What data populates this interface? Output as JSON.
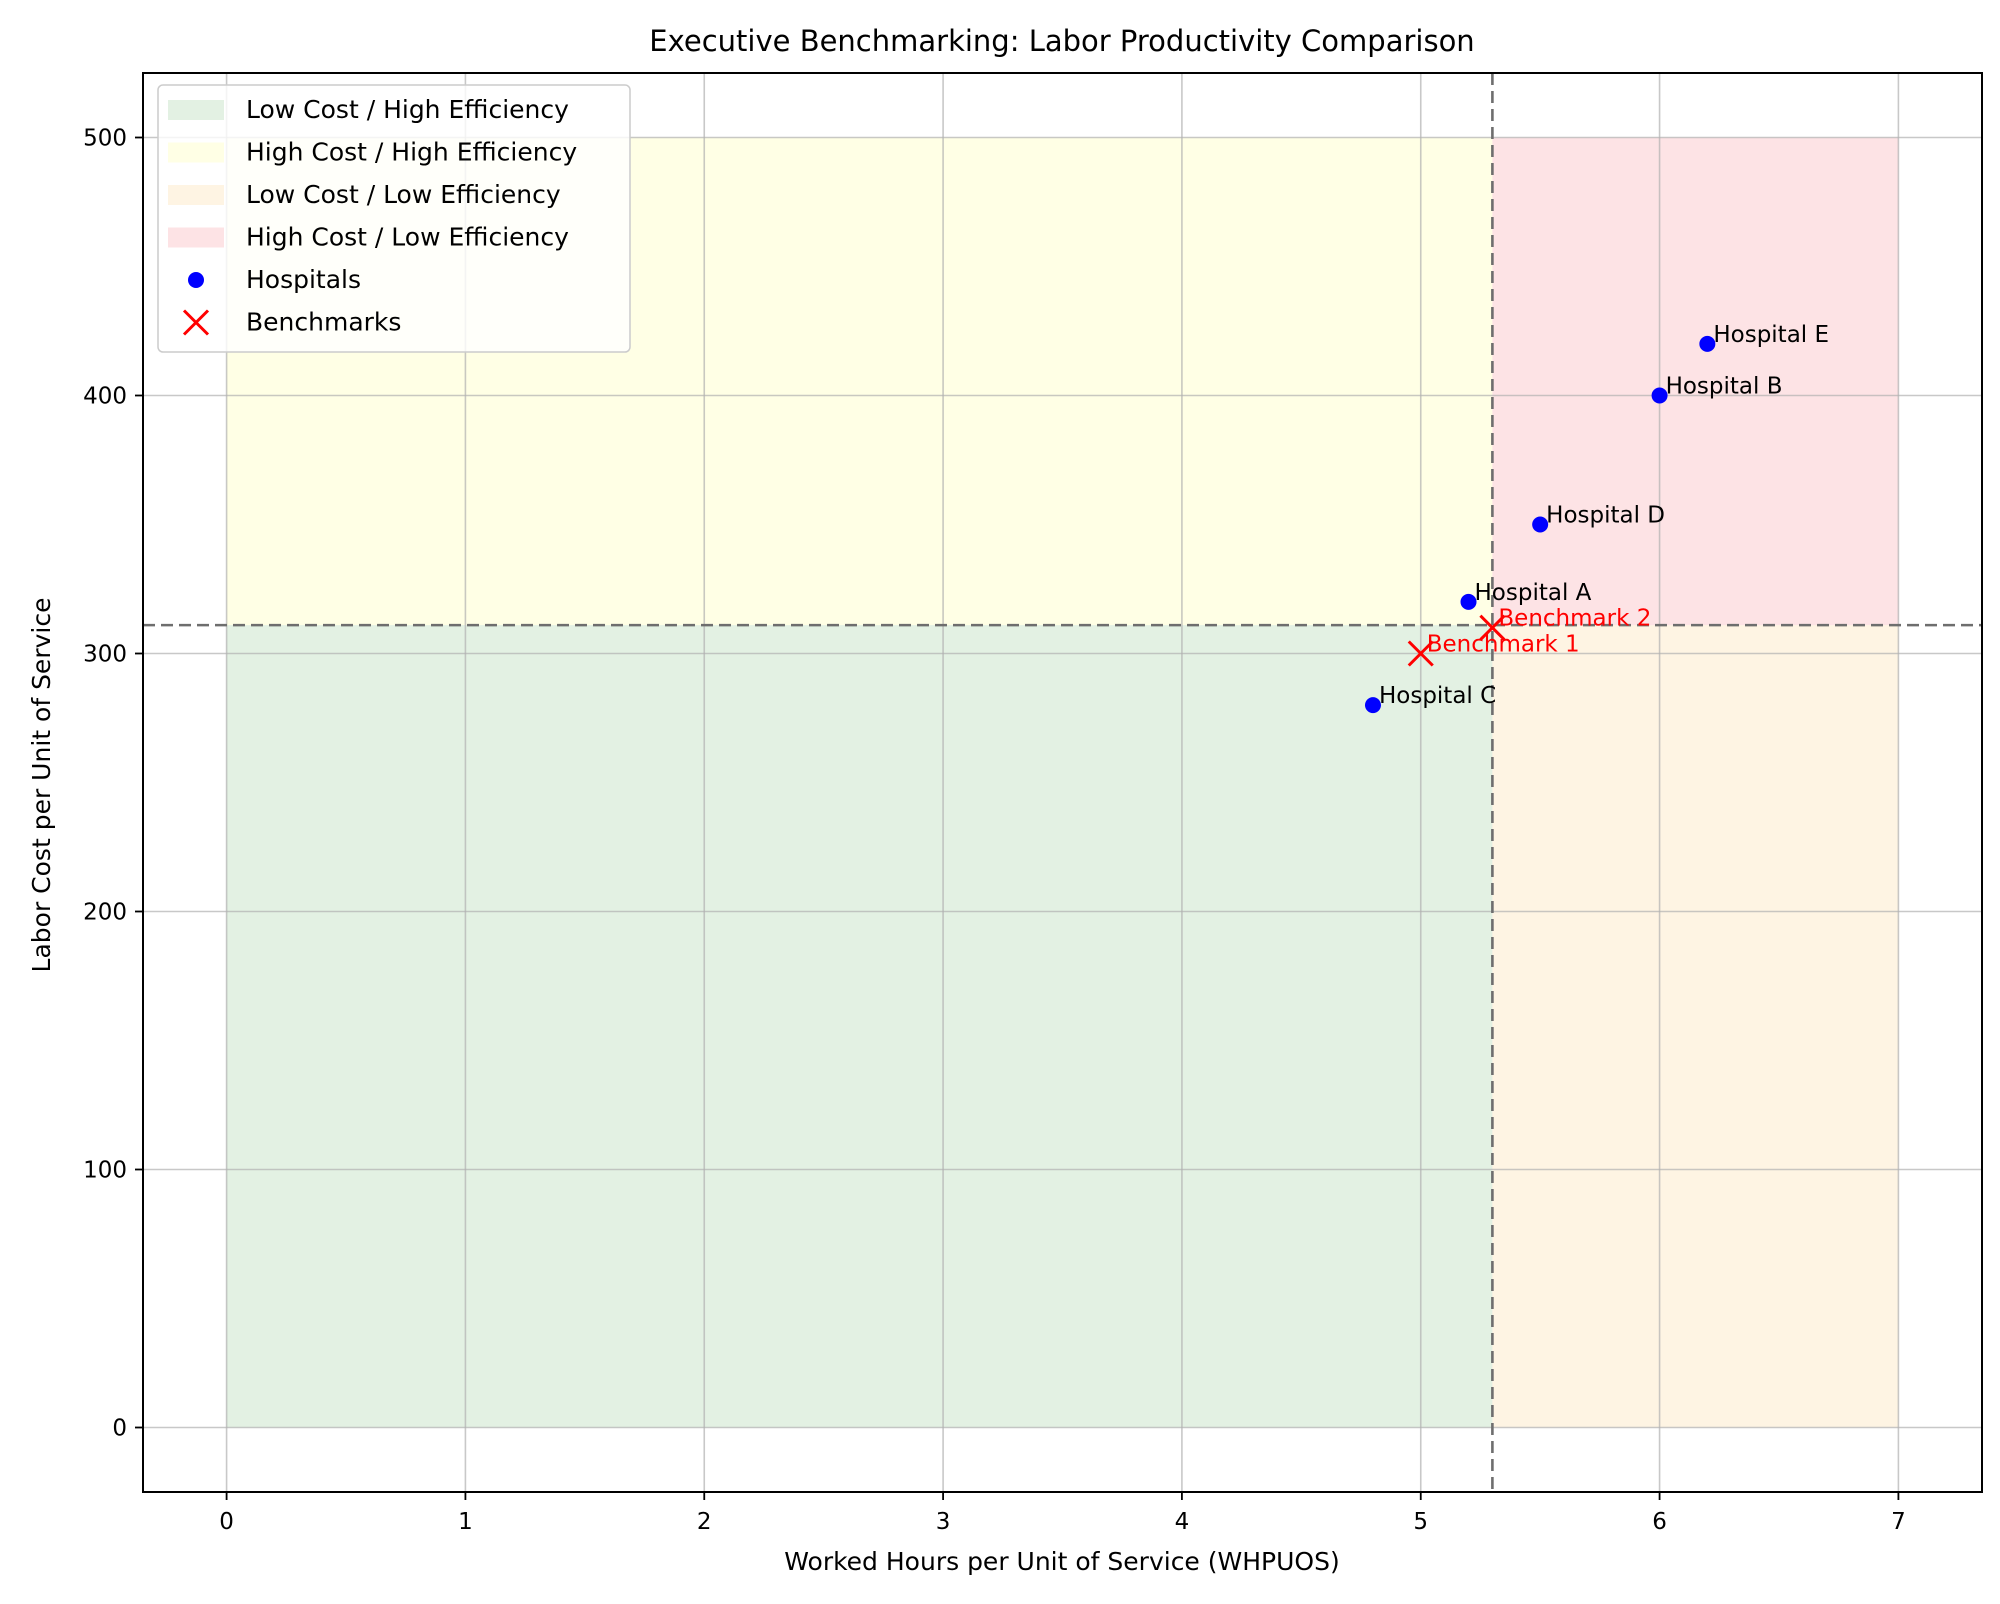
{
  "chart_data": {
    "type": "scatter",
    "title": "Executive Benchmarking: Labor Productivity Comparison",
    "xlabel": "Worked Hours per Unit of Service (WHPUOS)",
    "ylabel": "Labor Cost per Unit of Service",
    "xlim": [
      -0.35,
      7.35
    ],
    "ylim": [
      -25,
      525
    ],
    "xticks": [
      0,
      1,
      2,
      3,
      4,
      5,
      6,
      7
    ],
    "yticks": [
      0,
      100,
      200,
      300,
      400,
      500
    ],
    "grid": true,
    "legend_position": "top-left",
    "thresholds": {
      "x": 5.3,
      "y": 311
    },
    "regions": [
      {
        "label": "Low Cost / High Efficiency",
        "x": [
          0,
          5.3
        ],
        "y": [
          0,
          311
        ],
        "color": "#c8e3c8"
      },
      {
        "label": "High Cost / High Efficiency",
        "x": [
          0,
          5.3
        ],
        "y": [
          311,
          500
        ],
        "color": "#ffffcc"
      },
      {
        "label": "Low Cost / Low Efficiency",
        "x": [
          5.3,
          7
        ],
        "y": [
          0,
          311
        ],
        "color": "#fde9c8"
      },
      {
        "label": "High Cost / Low Efficiency",
        "x": [
          5.3,
          7
        ],
        "y": [
          311,
          500
        ],
        "color": "#fcc8cc"
      }
    ],
    "series": [
      {
        "name": "Hospitals",
        "marker": "circle",
        "color": "#0000ff",
        "label_color": "#000000",
        "points": [
          {
            "label": "Hospital A",
            "x": 5.2,
            "y": 320
          },
          {
            "label": "Hospital B",
            "x": 6.0,
            "y": 400
          },
          {
            "label": "Hospital C",
            "x": 4.8,
            "y": 280
          },
          {
            "label": "Hospital D",
            "x": 5.5,
            "y": 350
          },
          {
            "label": "Hospital E",
            "x": 6.2,
            "y": 420
          }
        ]
      },
      {
        "name": "Benchmarks",
        "marker": "x",
        "color": "#ff0000",
        "label_color": "#ff0000",
        "points": [
          {
            "label": "Benchmark 1",
            "x": 5.0,
            "y": 300
          },
          {
            "label": "Benchmark 2",
            "x": 5.3,
            "y": 310
          }
        ]
      }
    ]
  }
}
